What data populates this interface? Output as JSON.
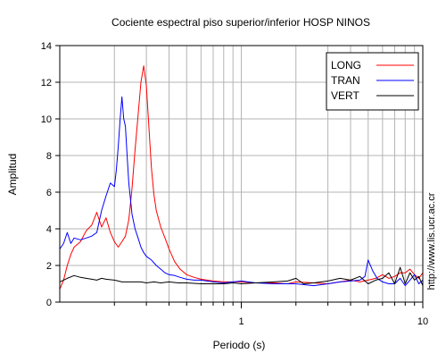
{
  "chart_data": {
    "type": "line",
    "title": "Cociente espectral piso superior/inferior  HOSP NINOS",
    "xlabel": "Periodo (s)",
    "ylabel": "Amplitud",
    "x_scale": "log",
    "xlim": [
      0.1,
      10
    ],
    "ylim": [
      0,
      14
    ],
    "x_tick_labels": [
      {
        "value": 1,
        "label": "1"
      },
      {
        "value": 10,
        "label": "10"
      }
    ],
    "x_minor_ticks": [
      0.2,
      0.3,
      0.4,
      0.5,
      0.6,
      0.7,
      0.8,
      0.9,
      2,
      3,
      4,
      5,
      6,
      7,
      8,
      9
    ],
    "y_ticks": [
      0,
      2,
      4,
      6,
      8,
      10,
      12,
      14
    ],
    "grid": true,
    "legend_position": "top-right",
    "side_text": "http://www.lis.ucr.ac.cr",
    "series": [
      {
        "name": "LONG",
        "color": "#ff0000",
        "x": [
          0.1,
          0.105,
          0.11,
          0.115,
          0.12,
          0.13,
          0.14,
          0.15,
          0.16,
          0.17,
          0.18,
          0.19,
          0.2,
          0.21,
          0.22,
          0.23,
          0.24,
          0.25,
          0.26,
          0.27,
          0.28,
          0.29,
          0.3,
          0.31,
          0.32,
          0.33,
          0.34,
          0.36,
          0.38,
          0.4,
          0.43,
          0.46,
          0.5,
          0.55,
          0.6,
          0.7,
          0.8,
          0.9,
          1.0,
          1.2,
          1.5,
          1.8,
          2.0,
          2.5,
          3.0,
          3.5,
          4.0,
          4.5,
          5.0,
          5.5,
          6.0,
          6.5,
          7.0,
          7.5,
          8.0,
          8.5,
          9.0,
          9.5,
          10.0
        ],
        "y": [
          0.7,
          1.2,
          2.0,
          2.6,
          3.0,
          3.3,
          3.9,
          4.2,
          4.9,
          4.1,
          4.6,
          3.8,
          3.3,
          3.0,
          3.3,
          3.6,
          4.5,
          6.2,
          8.3,
          10.2,
          12.0,
          12.9,
          11.8,
          9.5,
          7.3,
          5.9,
          5.0,
          4.1,
          3.5,
          2.9,
          2.2,
          1.8,
          1.5,
          1.35,
          1.25,
          1.15,
          1.1,
          1.1,
          1.1,
          1.05,
          1.05,
          1.0,
          1.1,
          1.05,
          1.0,
          1.1,
          1.2,
          1.1,
          1.2,
          1.3,
          1.5,
          1.3,
          1.4,
          1.6,
          1.6,
          1.8,
          1.5,
          1.3,
          1.6
        ]
      },
      {
        "name": "TRAN",
        "color": "#0000ff",
        "x": [
          0.1,
          0.105,
          0.11,
          0.115,
          0.12,
          0.13,
          0.14,
          0.15,
          0.16,
          0.17,
          0.18,
          0.19,
          0.2,
          0.205,
          0.21,
          0.215,
          0.22,
          0.225,
          0.23,
          0.235,
          0.24,
          0.25,
          0.26,
          0.27,
          0.28,
          0.29,
          0.3,
          0.32,
          0.34,
          0.36,
          0.38,
          0.4,
          0.43,
          0.46,
          0.5,
          0.55,
          0.6,
          0.7,
          0.8,
          0.9,
          1.0,
          1.2,
          1.5,
          1.8,
          2.0,
          2.5,
          3.0,
          3.5,
          4.0,
          4.5,
          4.8,
          5.0,
          5.3,
          5.6,
          6.0,
          6.5,
          7.0,
          7.5,
          8.0,
          8.5,
          9.0,
          9.5,
          10.0
        ],
        "y": [
          2.9,
          3.2,
          3.8,
          3.2,
          3.5,
          3.4,
          3.5,
          3.6,
          3.8,
          5.0,
          5.8,
          6.5,
          6.3,
          7.2,
          8.5,
          10.0,
          11.2,
          10.0,
          9.6,
          8.0,
          6.5,
          4.8,
          4.0,
          3.5,
          3.0,
          2.7,
          2.5,
          2.3,
          2.0,
          1.8,
          1.6,
          1.5,
          1.45,
          1.35,
          1.25,
          1.2,
          1.2,
          1.1,
          1.05,
          1.1,
          1.15,
          1.05,
          1.0,
          1.0,
          1.0,
          0.9,
          1.0,
          1.1,
          1.15,
          1.2,
          1.4,
          2.3,
          1.7,
          1.3,
          1.1,
          1.0,
          1.0,
          1.3,
          0.9,
          1.2,
          1.5,
          1.0,
          1.2
        ]
      },
      {
        "name": "VERT",
        "color": "#000000",
        "x": [
          0.1,
          0.11,
          0.12,
          0.13,
          0.14,
          0.15,
          0.16,
          0.17,
          0.18,
          0.2,
          0.22,
          0.25,
          0.28,
          0.3,
          0.33,
          0.36,
          0.4,
          0.45,
          0.5,
          0.6,
          0.7,
          0.8,
          0.9,
          1.0,
          1.2,
          1.5,
          1.8,
          2.0,
          2.2,
          2.5,
          3.0,
          3.5,
          4.0,
          4.5,
          5.0,
          5.5,
          6.0,
          6.5,
          7.0,
          7.5,
          8.0,
          8.5,
          9.0,
          9.5,
          10.0
        ],
        "y": [
          1.1,
          1.3,
          1.45,
          1.35,
          1.3,
          1.25,
          1.2,
          1.3,
          1.25,
          1.2,
          1.1,
          1.1,
          1.1,
          1.05,
          1.1,
          1.05,
          1.1,
          1.05,
          1.05,
          1.0,
          1.0,
          1.0,
          1.05,
          1.0,
          1.05,
          1.1,
          1.15,
          1.3,
          1.0,
          1.05,
          1.15,
          1.3,
          1.2,
          1.4,
          1.0,
          1.2,
          1.3,
          1.6,
          1.0,
          1.9,
          1.0,
          1.6,
          1.2,
          1.4,
          0.9
        ]
      }
    ]
  }
}
